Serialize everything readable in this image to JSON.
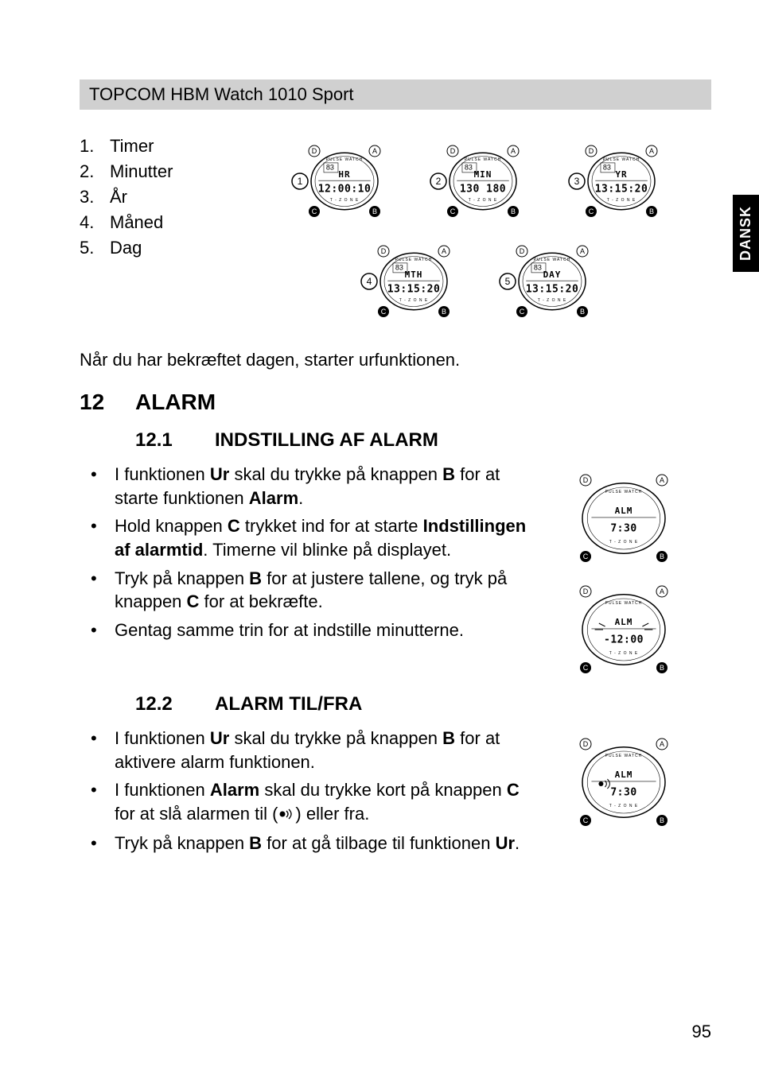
{
  "header": "TOPCOM HBM Watch 1010 Sport",
  "sideTab": "DANSK",
  "numList": [
    {
      "n": "1.",
      "label": "Timer"
    },
    {
      "n": "2.",
      "label": "Minutter"
    },
    {
      "n": "3.",
      "label": "År"
    },
    {
      "n": "4.",
      "label": "Måned"
    },
    {
      "n": "5.",
      "label": "Dag"
    }
  ],
  "postDiagramText": "Når du har bekræftet dagen, starter urfunktionen.",
  "section12": {
    "num": "12",
    "title": "ALARM"
  },
  "section121": {
    "num": "12.1",
    "title": "INDSTILLING AF ALARM",
    "bullets": [
      {
        "parts": [
          {
            "t": "I funktionen "
          },
          {
            "t": "Ur",
            "b": true
          },
          {
            "t": " skal du trykke på knappen "
          },
          {
            "t": "B",
            "b": true
          },
          {
            "t": " for at starte funktionen "
          },
          {
            "t": "Alarm",
            "b": true
          },
          {
            "t": "."
          }
        ]
      },
      {
        "parts": [
          {
            "t": "Hold knappen "
          },
          {
            "t": "C",
            "b": true
          },
          {
            "t": " trykket ind for at starte "
          },
          {
            "t": "Indstillingen af alarmtid",
            "b": true
          },
          {
            "t": ". Timerne vil blinke på displayet."
          }
        ]
      },
      {
        "parts": [
          {
            "t": "Tryk på knappen "
          },
          {
            "t": "B",
            "b": true
          },
          {
            "t": " for at justere tallene, og tryk på knappen "
          },
          {
            "t": "C",
            "b": true
          },
          {
            "t": " for at bekræfte."
          }
        ]
      },
      {
        "parts": [
          {
            "t": "Gentag samme trin for at indstille minutterne."
          }
        ]
      }
    ]
  },
  "section122": {
    "num": "12.2",
    "title": "ALARM TIL/FRA",
    "bullets": [
      {
        "parts": [
          {
            "t": "I funktionen "
          },
          {
            "t": "Ur",
            "b": true
          },
          {
            "t": " skal du trykke på knappen "
          },
          {
            "t": "B",
            "b": true
          },
          {
            "t": " for at aktivere alarm funktionen."
          }
        ]
      },
      {
        "parts": [
          {
            "t": "I funktionen "
          },
          {
            "t": "Alarm",
            "b": true
          },
          {
            "t": " skal du trykke kort på knappen "
          },
          {
            "t": "C",
            "b": true
          },
          {
            "t": " for at slå alarmen til ("
          },
          {
            "icon": "alarm"
          },
          {
            "t": ") eller fra."
          }
        ]
      },
      {
        "parts": [
          {
            "t": "Tryk på knappen "
          },
          {
            "t": "B",
            "b": true
          },
          {
            "t": " for at gå tilbage til funktionen "
          },
          {
            "t": "Ur",
            "b": true
          },
          {
            "t": "."
          }
        ]
      }
    ]
  },
  "pageNumber": "95",
  "watchDiagrams": {
    "topRow": [
      {
        "circled": "1",
        "topLabel": "HR",
        "line2": "12:00:10",
        "leftNum": "83"
      },
      {
        "circled": "2",
        "topLabel": "MIN",
        "line2": "130 180",
        "leftNum": "83"
      },
      {
        "circled": "3",
        "topLabel": "YR",
        "line2": "13:15:20",
        "leftNum": "83"
      }
    ],
    "bottomRow": [
      {
        "circled": "4",
        "topLabel": "MTH",
        "line2": "13:15:20",
        "leftNum": "83"
      },
      {
        "circled": "5",
        "topLabel": "DAY",
        "line2": "13:15:20",
        "leftNum": "83"
      }
    ],
    "side121": [
      {
        "topLabel": "ALM",
        "line2": "7:30"
      },
      {
        "topLabel": "ALM",
        "line2": "-12:00",
        "blink": true
      }
    ],
    "side122": [
      {
        "topLabel": "ALM",
        "line2": "7:30",
        "alarmOn": true
      }
    ]
  },
  "colors": {
    "headerBg": "#d0d0d0",
    "text": "#000000",
    "bg": "#ffffff"
  }
}
